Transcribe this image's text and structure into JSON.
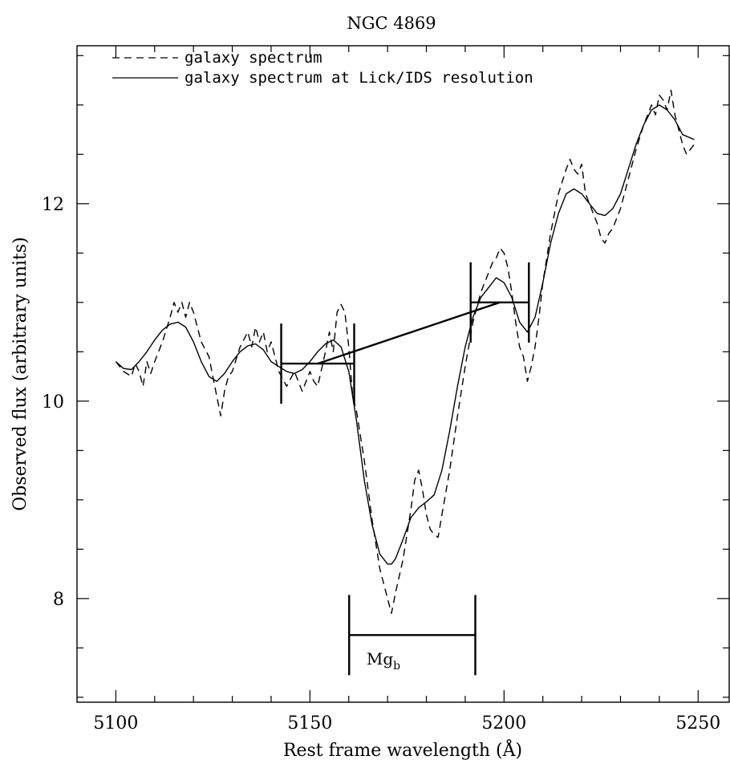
{
  "chart_data": {
    "type": "line",
    "title": "NGC 4869",
    "xlabel": "Rest frame wavelength (Å)",
    "ylabel": "Observed flux (arbitrary units)",
    "xlim": [
      5090,
      5258
    ],
    "ylim": [
      6.95,
      13.6
    ],
    "x_ticks": [
      5100,
      5150,
      5200,
      5250
    ],
    "y_ticks": [
      8,
      10,
      12
    ],
    "legend_position": "top-left",
    "series": [
      {
        "name": "galaxy spectrum",
        "style": "dashed",
        "x": [
          5100,
          5102,
          5104,
          5105,
          5106,
          5107,
          5108,
          5109,
          5110,
          5112,
          5114,
          5115,
          5116,
          5117,
          5118,
          5119,
          5120,
          5121,
          5122,
          5124,
          5126,
          5127,
          5128,
          5129,
          5130,
          5132,
          5134,
          5135,
          5136,
          5137,
          5138,
          5139,
          5140,
          5141,
          5142,
          5144,
          5146,
          5148,
          5150,
          5151,
          5152,
          5154,
          5155,
          5156,
          5157,
          5158,
          5159,
          5160,
          5161,
          5162,
          5164,
          5166,
          5168,
          5170,
          5171,
          5172,
          5174,
          5176,
          5177,
          5178,
          5179,
          5180,
          5181,
          5182,
          5183,
          5184,
          5186,
          5188,
          5190,
          5192,
          5194,
          5196,
          5197,
          5198,
          5199,
          5200,
          5201,
          5202,
          5203,
          5204,
          5205,
          5206,
          5207,
          5208,
          5209,
          5210,
          5212,
          5214,
          5216,
          5217,
          5218,
          5219,
          5220,
          5221,
          5222,
          5223,
          5224,
          5225,
          5226,
          5227,
          5228,
          5230,
          5232,
          5234,
          5236,
          5237,
          5238,
          5239,
          5240,
          5241,
          5242,
          5243,
          5244,
          5245,
          5246,
          5247,
          5248,
          5249
        ],
        "y": [
          10.4,
          10.3,
          10.25,
          10.38,
          10.3,
          10.15,
          10.4,
          10.28,
          10.4,
          10.6,
          10.85,
          11.0,
          10.9,
          11.0,
          10.85,
          11.0,
          10.9,
          10.75,
          10.6,
          10.45,
          10.05,
          9.85,
          10.1,
          10.25,
          10.3,
          10.55,
          10.7,
          10.55,
          10.75,
          10.6,
          10.7,
          10.5,
          10.6,
          10.45,
          10.3,
          10.15,
          10.3,
          10.1,
          10.3,
          10.2,
          10.15,
          10.5,
          10.7,
          10.5,
          10.9,
          10.98,
          10.9,
          10.55,
          10.05,
          9.9,
          9.4,
          8.8,
          8.3,
          8.0,
          7.85,
          8.05,
          8.4,
          8.9,
          9.2,
          9.3,
          9.1,
          8.85,
          8.7,
          8.65,
          8.62,
          8.85,
          9.3,
          9.85,
          10.35,
          10.8,
          11.1,
          11.3,
          11.4,
          11.45,
          11.55,
          11.5,
          11.35,
          11.1,
          10.8,
          10.55,
          10.45,
          10.2,
          10.35,
          10.55,
          10.85,
          11.2,
          11.7,
          12.1,
          12.35,
          12.45,
          12.35,
          12.3,
          12.4,
          12.1,
          12.0,
          11.9,
          11.8,
          11.65,
          11.6,
          11.7,
          11.75,
          11.95,
          12.25,
          12.55,
          12.8,
          12.9,
          13.0,
          12.9,
          13.1,
          13.05,
          12.95,
          13.15,
          12.9,
          12.75,
          12.6,
          12.5,
          12.55,
          12.6
        ]
      },
      {
        "name": "galaxy spectrum at Lick/IDS resolution",
        "style": "solid",
        "x": [
          5100,
          5102,
          5104,
          5106,
          5108,
          5110,
          5112,
          5114,
          5116,
          5118,
          5120,
          5122,
          5124,
          5126,
          5128,
          5130,
          5132,
          5134,
          5136,
          5138,
          5140,
          5142,
          5144,
          5146,
          5148,
          5150,
          5152,
          5154,
          5156,
          5158,
          5160,
          5162,
          5164,
          5166,
          5168,
          5170,
          5171,
          5172,
          5174,
          5176,
          5178,
          5180,
          5182,
          5184,
          5186,
          5188,
          5190,
          5192,
          5194,
          5196,
          5198,
          5200,
          5202,
          5204,
          5206,
          5208,
          5210,
          5212,
          5214,
          5216,
          5218,
          5220,
          5222,
          5224,
          5226,
          5228,
          5230,
          5232,
          5234,
          5236,
          5238,
          5240,
          5242,
          5244,
          5246,
          5249
        ],
        "y": [
          10.4,
          10.33,
          10.32,
          10.4,
          10.5,
          10.62,
          10.72,
          10.78,
          10.8,
          10.75,
          10.6,
          10.4,
          10.25,
          10.2,
          10.28,
          10.4,
          10.5,
          10.56,
          10.58,
          10.52,
          10.4,
          10.35,
          10.3,
          10.28,
          10.32,
          10.4,
          10.5,
          10.58,
          10.62,
          10.55,
          10.3,
          9.8,
          9.2,
          8.75,
          8.45,
          8.35,
          8.35,
          8.4,
          8.6,
          8.82,
          8.92,
          8.98,
          9.05,
          9.3,
          9.7,
          10.15,
          10.55,
          10.85,
          11.05,
          11.15,
          11.25,
          11.2,
          11.05,
          10.8,
          10.7,
          10.85,
          11.2,
          11.6,
          11.9,
          12.1,
          12.15,
          12.1,
          12.0,
          11.9,
          11.88,
          11.95,
          12.1,
          12.35,
          12.6,
          12.8,
          12.95,
          13.0,
          12.95,
          12.85,
          12.7,
          12.65
        ]
      }
    ],
    "annotations": {
      "mgb_label": "Mg",
      "mgb_subscript": "b",
      "blue_continuum": {
        "x1": 5142.6,
        "x2": 5161.4,
        "level": 10.38
      },
      "red_continuum": {
        "x1": 5191.4,
        "x2": 5206.4,
        "level": 11.0
      },
      "mgb_band": {
        "x1": 5160.1,
        "x2": 5192.6,
        "level": 7.63
      }
    }
  }
}
